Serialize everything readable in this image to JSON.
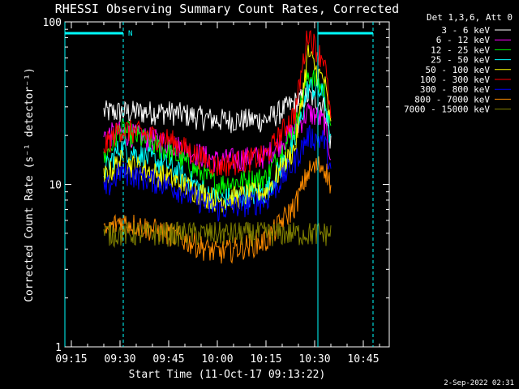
{
  "chart_data": {
    "type": "line",
    "title": "RHESSI Observing Summary Count Rates, Corrected",
    "xlabel": "Start Time (11-Oct-17 09:13:22)",
    "ylabel": "Corrected Count Rate (s⁻¹ detector⁻¹)",
    "yscale": "log",
    "ylim": [
      1,
      100
    ],
    "xlim": [
      "09:13",
      "10:53"
    ],
    "x_tick_labels": [
      "09:15",
      "09:30",
      "09:45",
      "10:00",
      "10:15",
      "10:30",
      "10:45"
    ],
    "y_tick_labels": [
      "1",
      "10",
      "100"
    ],
    "legend_title": "Det 1,3,6, Att 0",
    "legend_position": "right",
    "data_start": "09:25",
    "data_end": "10:35",
    "night_intervals": [
      [
        "09:13",
        "09:31"
      ],
      [
        "10:31",
        "10:48"
      ]
    ],
    "night_label": "N",
    "series": [
      {
        "name": "3 - 6 keV",
        "color": "#ffffff",
        "x": [
          "09:25",
          "09:30",
          "09:45",
          "10:00",
          "10:15",
          "10:24",
          "10:28",
          "10:31",
          "10:33",
          "10:35"
        ],
        "values": [
          28,
          28,
          28,
          25,
          25,
          32,
          35,
          33,
          30,
          18
        ]
      },
      {
        "name": "6 - 12 keV",
        "color": "#ff00ff",
        "x": [
          "09:25",
          "09:30",
          "09:45",
          "10:00",
          "10:15",
          "10:24",
          "10:28",
          "10:31",
          "10:33",
          "10:35"
        ],
        "values": [
          20,
          21,
          18,
          14,
          15,
          22,
          28,
          26,
          24,
          15
        ]
      },
      {
        "name": "12 - 25 keV",
        "color": "#00ff00",
        "x": [
          "09:25",
          "09:30",
          "09:45",
          "10:00",
          "10:15",
          "10:24",
          "10:28",
          "10:31",
          "10:33",
          "10:35"
        ],
        "values": [
          14,
          22,
          16,
          10,
          11,
          22,
          48,
          42,
          38,
          20
        ]
      },
      {
        "name": "25 - 50 keV",
        "color": "#00ffff",
        "x": [
          "09:25",
          "09:30",
          "09:45",
          "10:00",
          "10:15",
          "10:24",
          "10:28",
          "10:31",
          "10:33",
          "10:35"
        ],
        "values": [
          12,
          17,
          13,
          8,
          9,
          18,
          40,
          38,
          35,
          18
        ]
      },
      {
        "name": "50 - 100 keV",
        "color": "#ffff00",
        "x": [
          "09:25",
          "09:30",
          "09:45",
          "10:00",
          "10:15",
          "10:24",
          "10:28",
          "10:31",
          "10:33",
          "10:35"
        ],
        "values": [
          11,
          14,
          11,
          8,
          9,
          17,
          65,
          48,
          44,
          22
        ]
      },
      {
        "name": "100 - 300 keV",
        "color": "#ff0000",
        "x": [
          "09:25",
          "09:30",
          "09:45",
          "10:00",
          "10:15",
          "10:24",
          "10:28",
          "10:31",
          "10:33",
          "10:35"
        ],
        "values": [
          17,
          22,
          19,
          13,
          15,
          28,
          88,
          65,
          60,
          25
        ]
      },
      {
        "name": "300 - 800 keV",
        "color": "#0000ff",
        "x": [
          "09:25",
          "09:30",
          "09:45",
          "10:00",
          "10:15",
          "10:24",
          "10:28",
          "10:31",
          "10:33",
          "10:35"
        ],
        "values": [
          9,
          12,
          10,
          7,
          8,
          14,
          20,
          19,
          19,
          12
        ]
      },
      {
        "name": "800 - 7000 keV",
        "color": "#ff8c00",
        "x": [
          "09:25",
          "09:30",
          "09:45",
          "10:00",
          "10:15",
          "10:24",
          "10:28",
          "10:31",
          "10:33",
          "10:35"
        ],
        "values": [
          5,
          6,
          5,
          3.8,
          4.5,
          7.5,
          12,
          13,
          13,
          10
        ]
      },
      {
        "name": "7000 - 15000 keV",
        "color": "#808000",
        "x": [
          "09:25",
          "09:30",
          "09:45",
          "10:00",
          "10:15",
          "10:24",
          "10:28",
          "10:31",
          "10:33",
          "10:35"
        ],
        "values": [
          5,
          5,
          5,
          5,
          5,
          5,
          5,
          5,
          5,
          5
        ]
      }
    ]
  },
  "timestamp": "2-Sep-2022 02:31",
  "colors": {
    "background": "#000000",
    "axes": "#ffffff",
    "night_marker": "#00ffff"
  }
}
